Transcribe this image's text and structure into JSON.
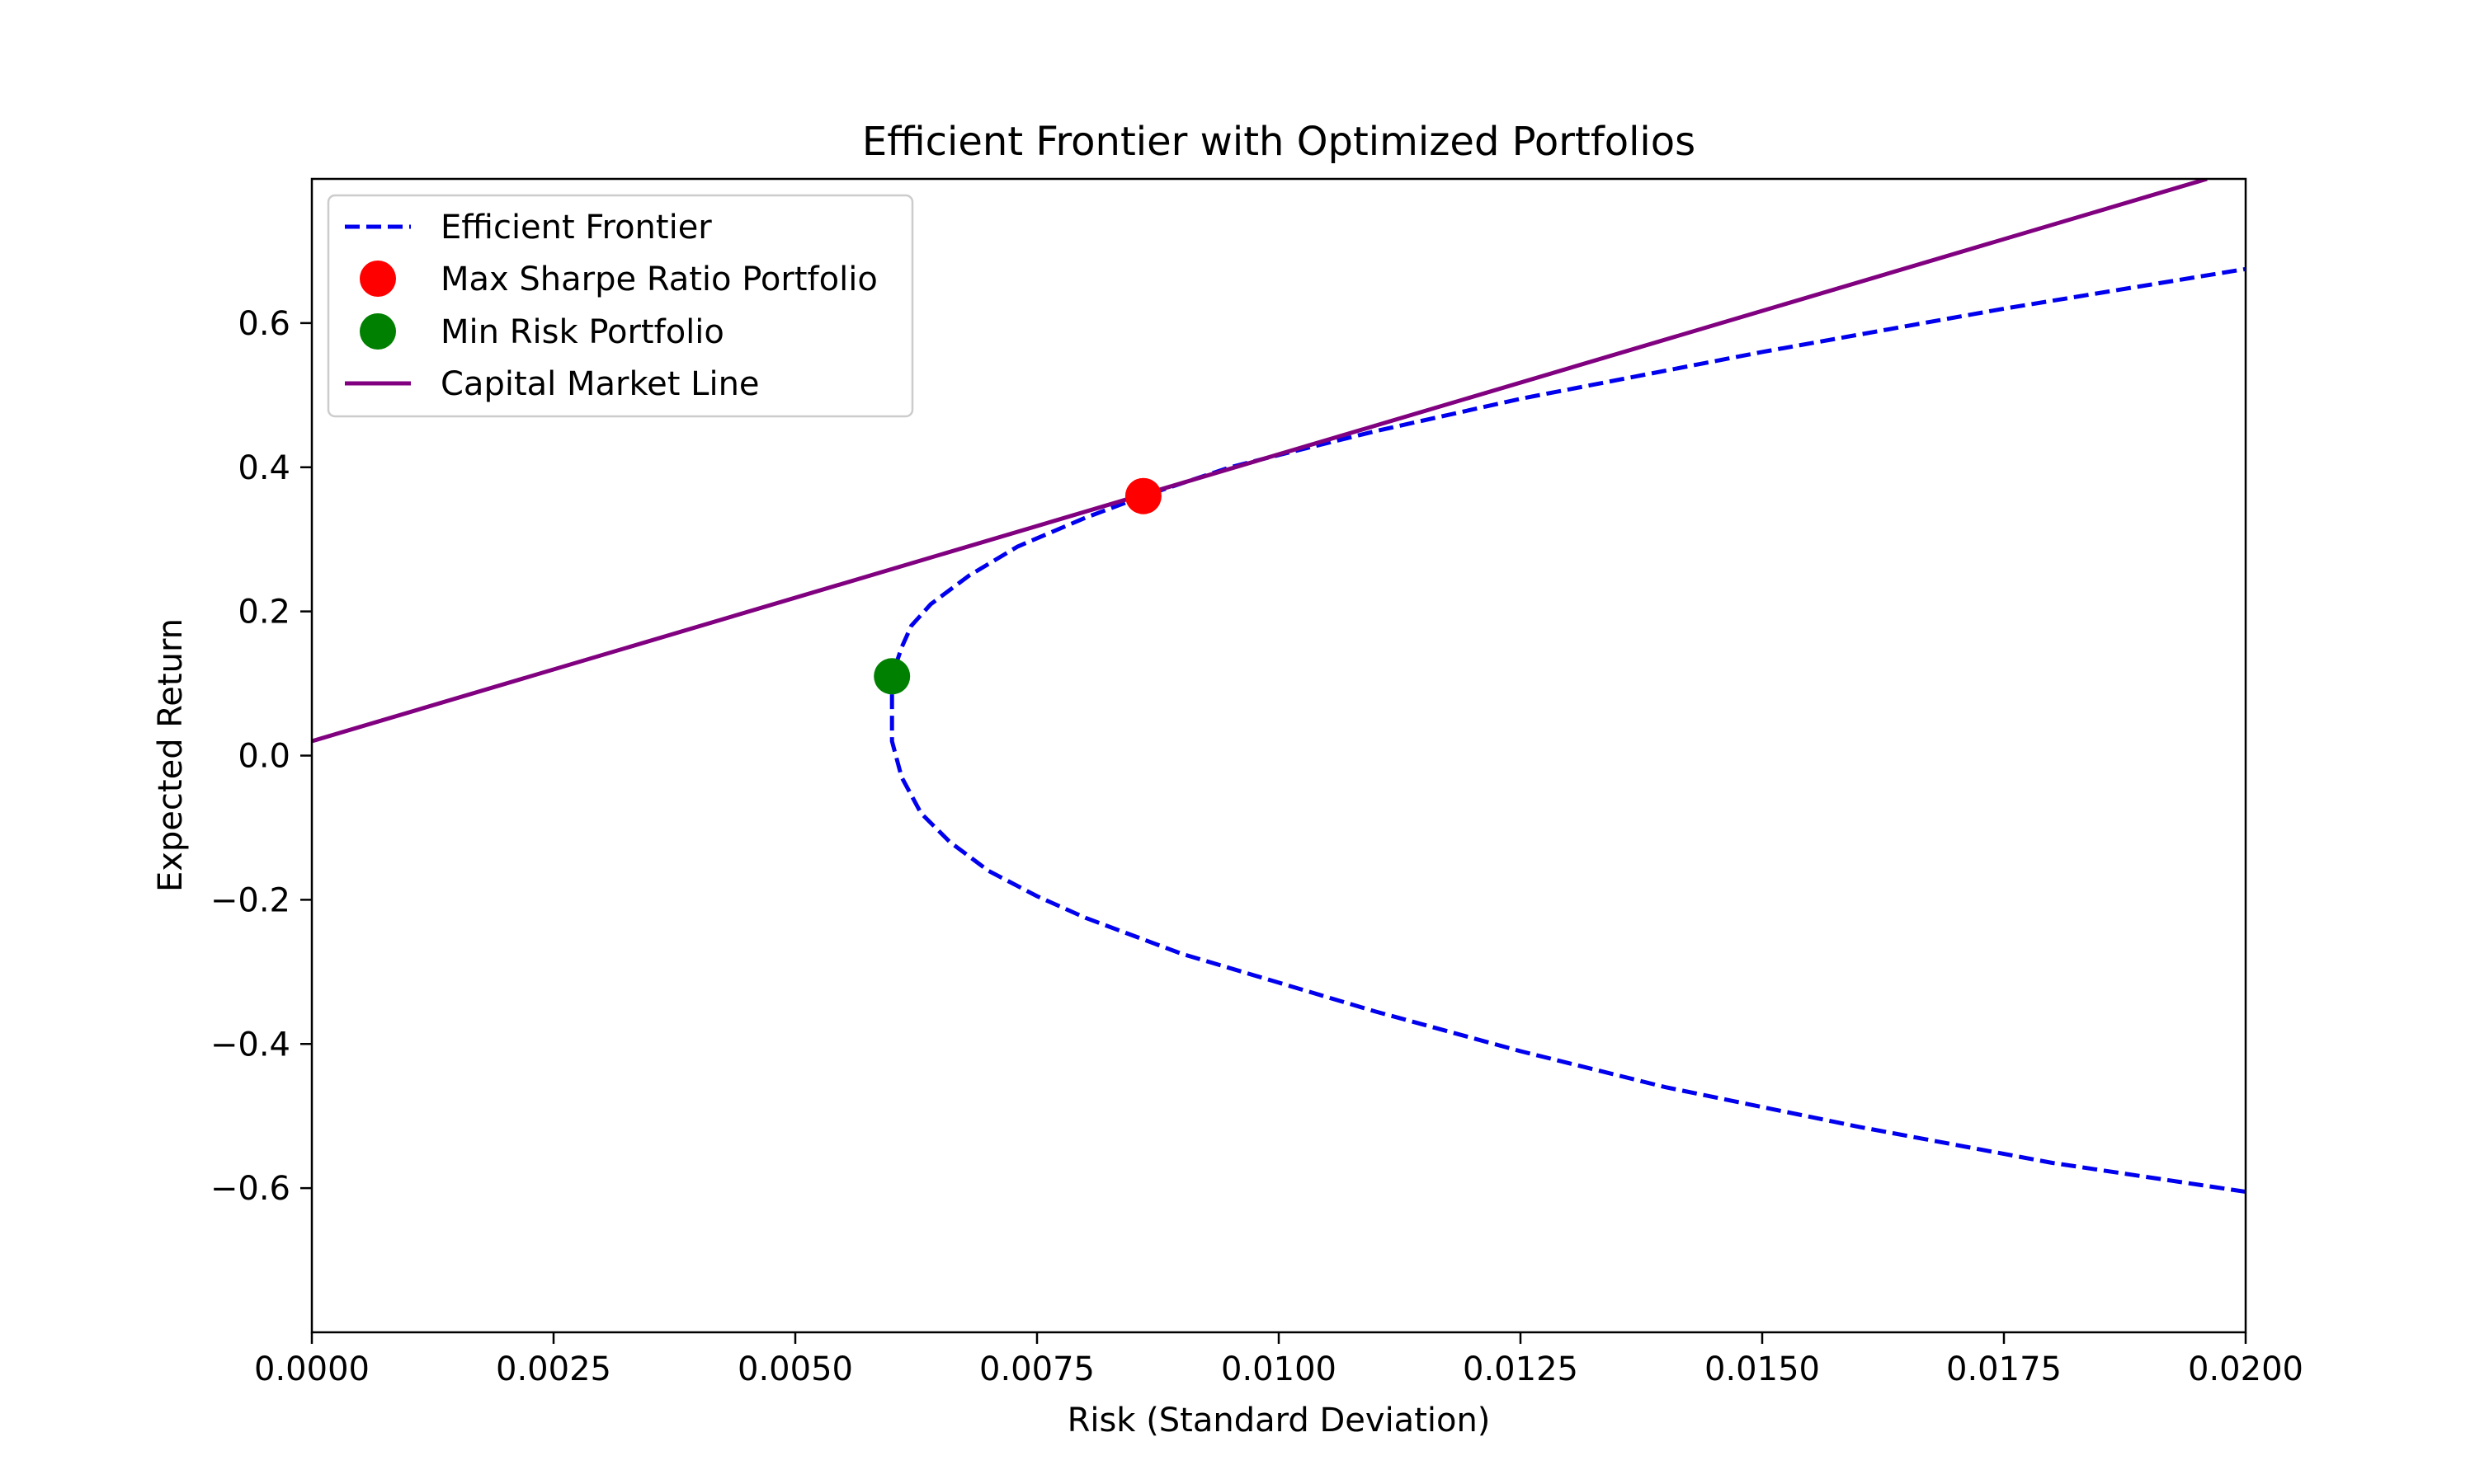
{
  "chart_data": {
    "type": "line",
    "title": "Efficient Frontier with Optimized Portfolios",
    "xlabel": "Risk (Standard Deviation)",
    "ylabel": "Expected Return",
    "xlim": [
      0.0,
      0.02
    ],
    "ylim": [
      -0.8,
      0.8
    ],
    "grid": false,
    "legend_position": "upper left",
    "x_ticks": [
      {
        "value": 0.0,
        "label": "0.0000"
      },
      {
        "value": 0.0025,
        "label": "0.0025"
      },
      {
        "value": 0.005,
        "label": "0.0050"
      },
      {
        "value": 0.0075,
        "label": "0.0075"
      },
      {
        "value": 0.01,
        "label": "0.0100"
      },
      {
        "value": 0.0125,
        "label": "0.0125"
      },
      {
        "value": 0.015,
        "label": "0.0150"
      },
      {
        "value": 0.0175,
        "label": "0.0175"
      },
      {
        "value": 0.02,
        "label": "0.0200"
      }
    ],
    "y_ticks": [
      {
        "value": -0.6,
        "label": "−0.6"
      },
      {
        "value": -0.4,
        "label": "−0.4"
      },
      {
        "value": -0.2,
        "label": "−0.2"
      },
      {
        "value": 0.0,
        "label": "0.0"
      },
      {
        "value": 0.2,
        "label": "0.2"
      },
      {
        "value": 0.4,
        "label": "0.4"
      },
      {
        "value": 0.6,
        "label": "0.6"
      }
    ],
    "series": [
      {
        "name": "Efficient Frontier",
        "kind": "line",
        "style": "dashed",
        "color": "#0000ee",
        "points": [
          [
            0.02,
            -0.605
          ],
          [
            0.018,
            -0.565
          ],
          [
            0.016,
            -0.515
          ],
          [
            0.014,
            -0.46
          ],
          [
            0.0125,
            -0.41
          ],
          [
            0.011,
            -0.355
          ],
          [
            0.01,
            -0.315
          ],
          [
            0.009,
            -0.275
          ],
          [
            0.008,
            -0.225
          ],
          [
            0.0075,
            -0.195
          ],
          [
            0.007,
            -0.16
          ],
          [
            0.0066,
            -0.12
          ],
          [
            0.0063,
            -0.08
          ],
          [
            0.0061,
            -0.03
          ],
          [
            0.006,
            0.02
          ],
          [
            0.006,
            0.06
          ],
          [
            0.006,
            0.11
          ],
          [
            0.0061,
            0.15
          ],
          [
            0.0062,
            0.18
          ],
          [
            0.0064,
            0.21
          ],
          [
            0.0068,
            0.25
          ],
          [
            0.0073,
            0.29
          ],
          [
            0.008,
            0.33
          ],
          [
            0.0086,
            0.36
          ],
          [
            0.0095,
            0.4
          ],
          [
            0.01,
            0.417
          ],
          [
            0.011,
            0.45
          ],
          [
            0.0125,
            0.495
          ],
          [
            0.015,
            0.56
          ],
          [
            0.0175,
            0.62
          ],
          [
            0.02,
            0.675
          ]
        ]
      },
      {
        "name": "Max Sharpe Ratio Portfolio",
        "kind": "point",
        "color": "#ff0000",
        "points": [
          [
            0.0086,
            0.36
          ]
        ]
      },
      {
        "name": "Min Risk Portfolio",
        "kind": "point",
        "color": "#008000",
        "points": [
          [
            0.006,
            0.11
          ]
        ]
      },
      {
        "name": "Capital Market Line",
        "kind": "line",
        "style": "solid",
        "color": "#800080",
        "points": [
          [
            0.0,
            0.02
          ],
          [
            0.0196,
            0.8
          ]
        ]
      }
    ]
  }
}
